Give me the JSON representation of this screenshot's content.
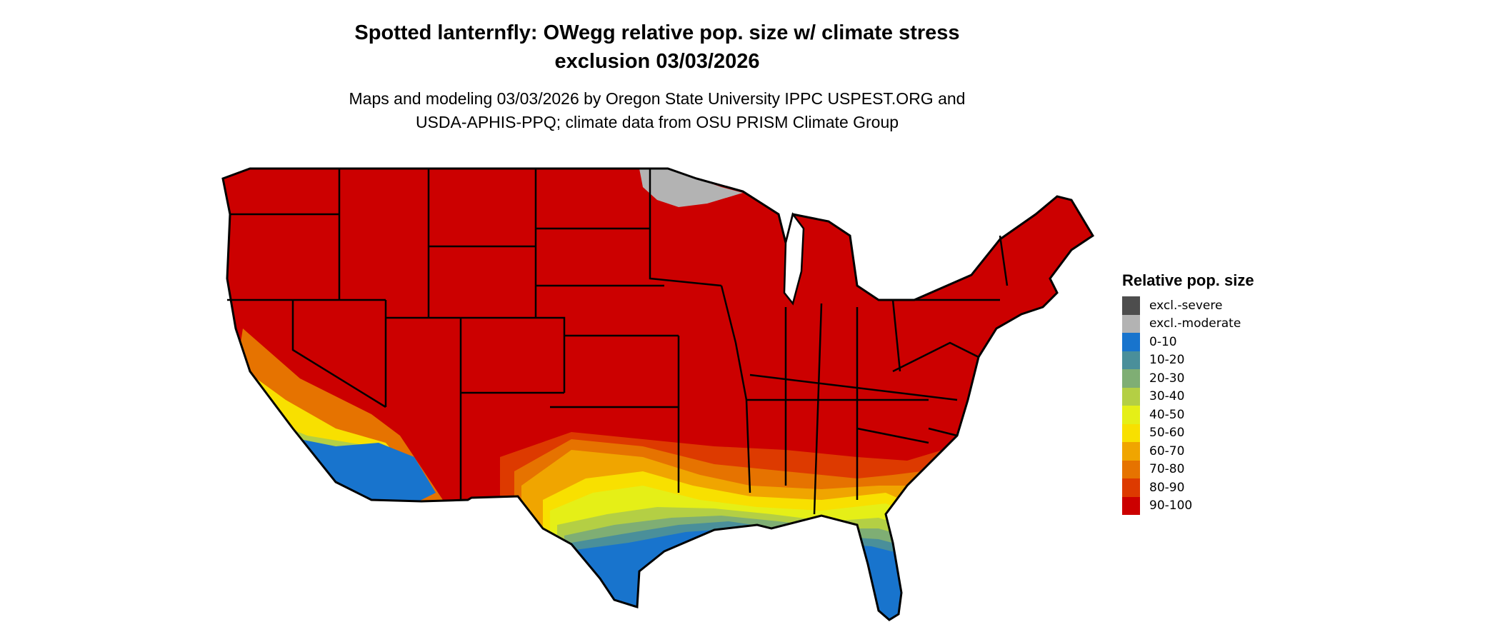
{
  "title": {
    "line1": "Spotted lanternfly: OWegg relative pop. size w/ climate stress",
    "line2": "exclusion 03/03/2026"
  },
  "subtitle": {
    "line1": "Maps and modeling 03/03/2026 by Oregon State University IPPC USPEST.ORG and",
    "line2": "USDA-APHIS-PPQ; climate data from OSU PRISM Climate Group"
  },
  "map": {
    "region": "Contiguous United States",
    "dominant_class": "90-100",
    "border_color": "#000000"
  },
  "legend": {
    "title": "Relative pop. size",
    "items": [
      {
        "label": "excl.-severe",
        "color": "#4d4d4d"
      },
      {
        "label": "excl.-moderate",
        "color": "#b3b3b3"
      },
      {
        "label": "0-10",
        "color": "#1874cd"
      },
      {
        "label": "10-20",
        "color": "#4a8f9a"
      },
      {
        "label": "20-30",
        "color": "#7fae74"
      },
      {
        "label": "30-40",
        "color": "#b4cf44"
      },
      {
        "label": "40-50",
        "color": "#e5ef17"
      },
      {
        "label": "50-60",
        "color": "#f8e000"
      },
      {
        "label": "60-70",
        "color": "#f0a500"
      },
      {
        "label": "70-80",
        "color": "#e67300"
      },
      {
        "label": "80-90",
        "color": "#dd3a00"
      },
      {
        "label": "90-100",
        "color": "#cc0000"
      }
    ]
  }
}
